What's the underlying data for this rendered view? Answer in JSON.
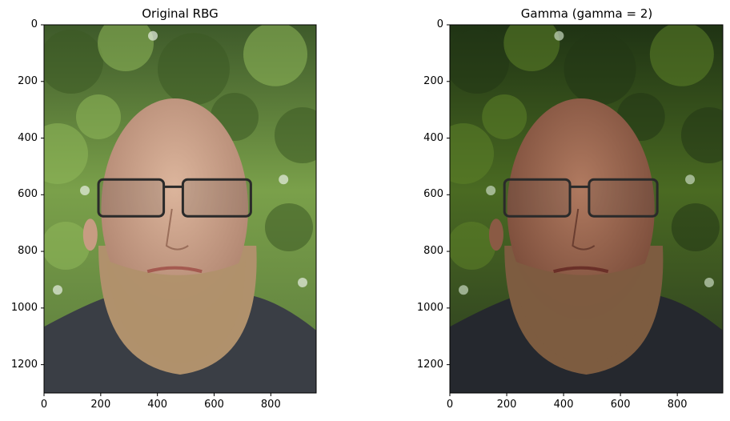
{
  "figure": {
    "panels": [
      {
        "title": "Original RBG",
        "variant": "original",
        "x_ticks": [
          "0",
          "200",
          "400",
          "600",
          "800"
        ],
        "y_ticks": [
          "0",
          "200",
          "400",
          "600",
          "800",
          "1000",
          "1200"
        ],
        "x_range": [
          0,
          960
        ],
        "y_range": [
          0,
          1300
        ]
      },
      {
        "title": "Gamma (gamma = 2)",
        "variant": "gamma",
        "x_ticks": [
          "0",
          "200",
          "400",
          "600",
          "800"
        ],
        "y_ticks": [
          "0",
          "200",
          "400",
          "600",
          "800",
          "1000",
          "1200"
        ],
        "x_range": [
          0,
          960
        ],
        "y_range": [
          0,
          1300
        ]
      }
    ]
  },
  "colors": {
    "foliage_light": "#8fb85a",
    "foliage_dark": "#3d5a24",
    "skin": "#c9a38a",
    "beard": "#b0916c",
    "hoodie": "#3a3e45"
  }
}
